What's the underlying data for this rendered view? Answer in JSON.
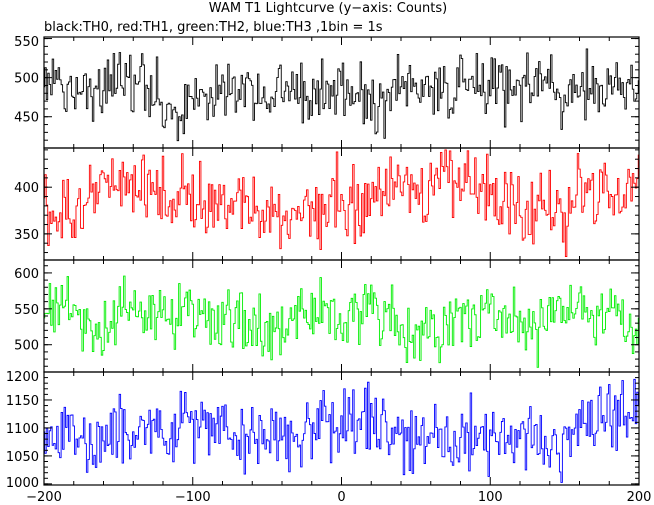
{
  "chart_data": {
    "type": "line",
    "title": "WAM T1 Lightcurve (y−axis: Counts)",
    "subtitle": "black:TH0, red:TH1, green:TH2, blue:TH3 ,1bin = 1s",
    "x_range": [
      -200,
      200
    ],
    "x_ticks": [
      -200,
      -100,
      0,
      100,
      200
    ],
    "grid": false,
    "panels": [
      {
        "name": "TH0",
        "color": "#000000",
        "ylim": [
          410,
          552
        ],
        "y_ticks": [
          450,
          500,
          550
        ],
        "mean": 487,
        "noise": 20,
        "min": 418,
        "max": 548
      },
      {
        "name": "TH1",
        "color": "#ff0000",
        "ylim": [
          322,
          442
        ],
        "y_ticks": [
          350,
          400
        ],
        "mean": 386,
        "noise": 19,
        "min": 324,
        "max": 440
      },
      {
        "name": "TH2",
        "color": "#00ee00",
        "ylim": [
          462,
          618
        ],
        "y_ticks": [
          500,
          550,
          600
        ],
        "mean": 533,
        "noise": 22,
        "min": 466,
        "max": 614
      },
      {
        "name": "TH3",
        "color": "#0000ff",
        "ylim": [
          998,
          1200
        ],
        "y_ticks": [
          1000,
          1050,
          1100,
          1150,
          1200
        ],
        "mean": 1103,
        "noise": 30,
        "min": 1002,
        "max": 1196
      }
    ]
  }
}
